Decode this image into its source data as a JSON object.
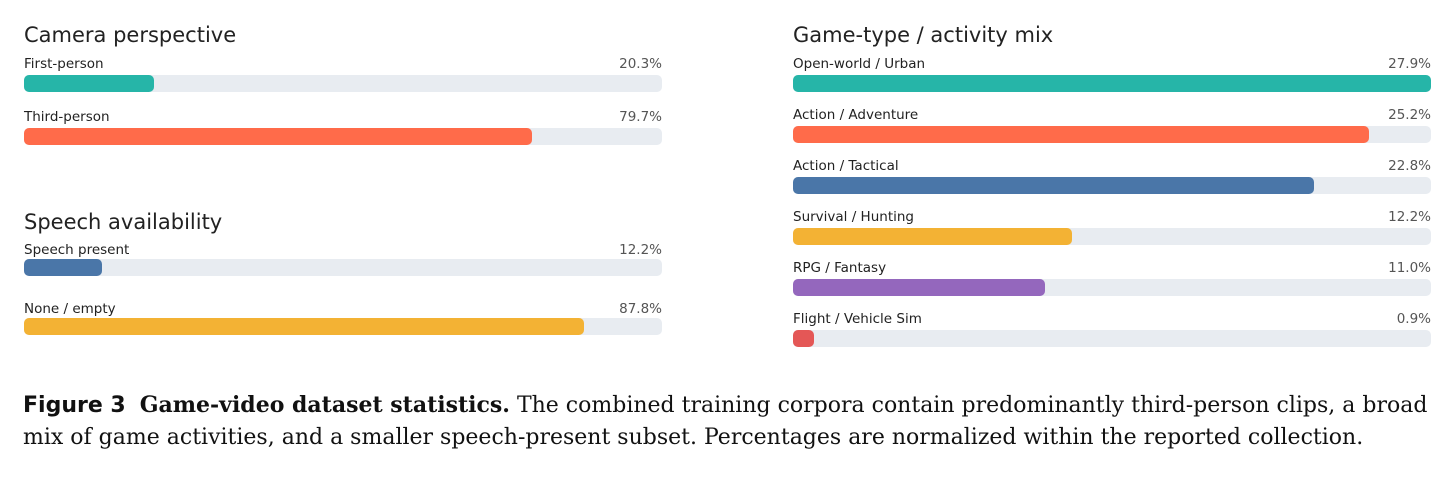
{
  "chart_data": [
    {
      "type": "bar",
      "title": "Camera perspective",
      "orientation": "horizontal",
      "xlim": [
        0,
        100
      ],
      "categories": [
        "First-person",
        "Third-person"
      ],
      "values": [
        20.3,
        79.7
      ],
      "value_labels": [
        "20.3%",
        "79.7%"
      ],
      "colors": [
        "#26b5a8",
        "#ff6b4a"
      ],
      "track_color": "#e8ecf1"
    },
    {
      "type": "bar",
      "title": "Speech availability",
      "orientation": "horizontal",
      "xlim": [
        0,
        100
      ],
      "categories": [
        "Speech present",
        "None / empty"
      ],
      "values": [
        12.2,
        87.8
      ],
      "value_labels": [
        "12.2%",
        "87.8%"
      ],
      "colors": [
        "#4a76a8",
        "#f3b234"
      ],
      "track_color": "#e8ecf1"
    },
    {
      "type": "bar",
      "title": "Game-type / activity mix",
      "orientation": "horizontal",
      "xlim": [
        0,
        27.9
      ],
      "categories": [
        "Open-world / Urban",
        "Action / Adventure",
        "Action / Tactical",
        "Survival / Hunting",
        "RPG / Fantasy",
        "Flight / Vehicle Sim"
      ],
      "values": [
        27.9,
        25.2,
        22.8,
        12.2,
        11.0,
        0.9
      ],
      "value_labels": [
        "27.9%",
        "25.2%",
        "22.8%",
        "12.2%",
        "11.0%",
        "0.9%"
      ],
      "colors": [
        "#26b5a8",
        "#ff6b4a",
        "#4a76a8",
        "#f3b234",
        "#9467bd",
        "#e45756"
      ],
      "track_color": "#e8ecf1"
    }
  ],
  "caption": {
    "figure_number": "Figure 3",
    "heading": "Game-video dataset statistics.",
    "text": "The combined training corpora contain predominantly third-person clips, a broad mix of game activities, and a smaller speech-present subset. Percentages are normalized within the reported collection."
  }
}
